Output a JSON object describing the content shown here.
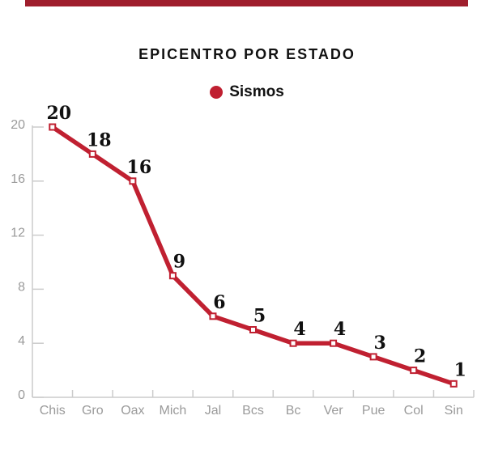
{
  "header": {
    "accent_bar_color": "#9f1e2d"
  },
  "chart_data": {
    "type": "line",
    "title": "EPICENTRO POR ESTADO",
    "legend": [
      {
        "label": "Sismos",
        "color": "#c02031"
      }
    ],
    "legend_position": "top-center",
    "categories": [
      "Chis",
      "Gro",
      "Oax",
      "Mich",
      "Jal",
      "Bcs",
      "Bc",
      "Ver",
      "Pue",
      "Col",
      "Sin"
    ],
    "series": [
      {
        "name": "Sismos",
        "color": "#c02031",
        "values": [
          20,
          18,
          16,
          9,
          6,
          5,
          4,
          4,
          3,
          2,
          1
        ],
        "point_labels": [
          "20",
          "18",
          "16",
          "9",
          "6",
          "5",
          "4",
          "4",
          "3",
          "2",
          "1"
        ]
      }
    ],
    "ylim": [
      0,
      20
    ],
    "yticks": [
      0,
      4,
      8,
      12,
      16,
      20
    ],
    "grid": false,
    "marker": "white-square-red-border"
  },
  "style": {
    "background": "#ffffff",
    "axis_line_color": "#cbcbcb",
    "tick_label_color": "#9a9a9a",
    "value_label_color": "#101010",
    "marker_fill": "#ffffff"
  }
}
